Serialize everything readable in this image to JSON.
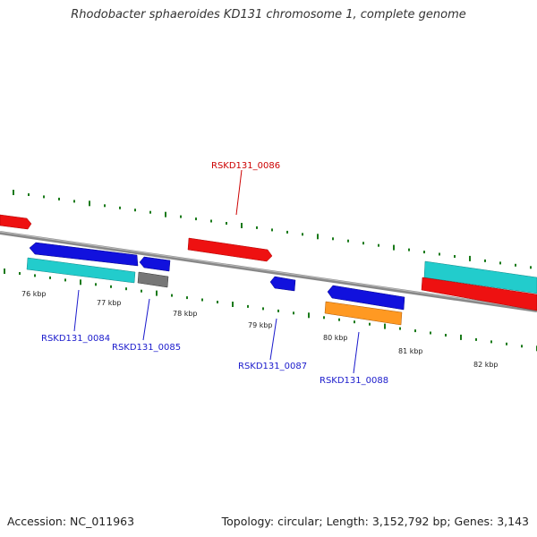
{
  "title": "Rhodobacter sphaeroides KD131 chromosome 1, complete genome",
  "footer": {
    "accession": "Accession: NC_011963",
    "summary": "Topology: circular; Length: 3,152,792 bp; Genes: 3,143"
  },
  "colors": {
    "backbone": "#888888",
    "forward_label": "#cc0000",
    "reverse_label": "#1a1acc",
    "tick": "#1a7a1a"
  },
  "kbp_labels": [
    "76 kbp",
    "77 kbp",
    "78 kbp",
    "79 kbp",
    "80 kbp",
    "81 kbp",
    "82 kbp"
  ],
  "gene_labels": [
    {
      "id": "RSKD131_0086",
      "strand": "forward"
    },
    {
      "id": "RSKD131_0084",
      "strand": "reverse"
    },
    {
      "id": "RSKD131_0085",
      "strand": "reverse"
    },
    {
      "id": "RSKD131_0087",
      "strand": "reverse"
    },
    {
      "id": "RSKD131_0088",
      "strand": "reverse"
    }
  ],
  "feature_colors": {
    "red": "#ee1111",
    "blue": "#1111dd",
    "cyan": "#22cccc",
    "gray": "#777777",
    "orange": "#ff9922"
  }
}
